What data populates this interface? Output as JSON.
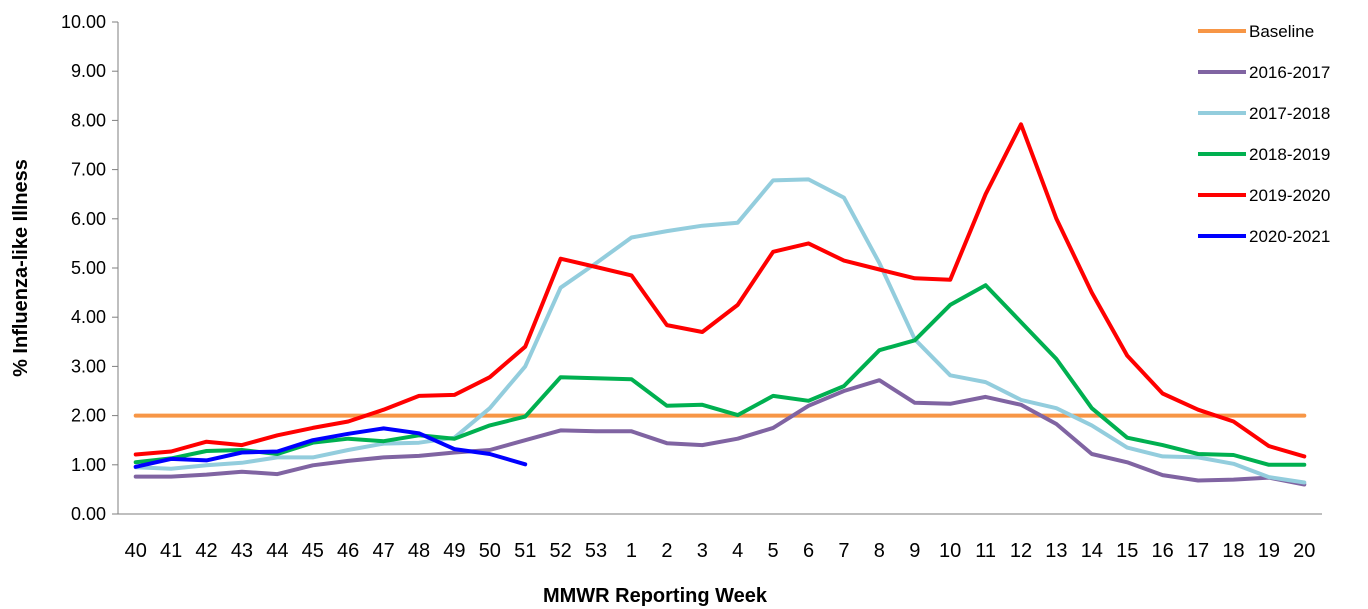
{
  "chart_data": {
    "type": "line",
    "xlabel": "MMWR Reporting Week",
    "ylabel": "% Influenza-like Illness",
    "ylim": [
      0,
      10
    ],
    "yticks": [
      "0.00",
      "1.00",
      "2.00",
      "3.00",
      "4.00",
      "5.00",
      "6.00",
      "7.00",
      "8.00",
      "9.00",
      "10.00"
    ],
    "grid": false,
    "legend_position": "top-right",
    "categories": [
      "40",
      "41",
      "42",
      "43",
      "44",
      "45",
      "46",
      "47",
      "48",
      "49",
      "50",
      "51",
      "52",
      "53",
      "1",
      "2",
      "3",
      "4",
      "5",
      "6",
      "7",
      "8",
      "9",
      "10",
      "11",
      "12",
      "13",
      "14",
      "15",
      "16",
      "17",
      "18",
      "19",
      "20"
    ],
    "series": [
      {
        "name": "Baseline",
        "color": "#F79646",
        "values": [
          2.0,
          2.0,
          2.0,
          2.0,
          2.0,
          2.0,
          2.0,
          2.0,
          2.0,
          2.0,
          2.0,
          2.0,
          2.0,
          2.0,
          2.0,
          2.0,
          2.0,
          2.0,
          2.0,
          2.0,
          2.0,
          2.0,
          2.0,
          2.0,
          2.0,
          2.0,
          2.0,
          2.0,
          2.0,
          2.0,
          2.0,
          2.0,
          2.0,
          2.0
        ]
      },
      {
        "name": "2016-2017",
        "color": "#8064A2",
        "values": [
          0.76,
          0.76,
          0.8,
          0.86,
          0.81,
          0.99,
          1.08,
          1.15,
          1.18,
          1.25,
          1.3,
          1.5,
          1.7,
          1.68,
          1.68,
          1.44,
          1.4,
          1.53,
          1.75,
          2.2,
          2.5,
          2.72,
          2.26,
          2.24,
          2.38,
          2.22,
          1.83,
          1.22,
          1.05,
          0.79,
          0.68,
          0.7,
          0.74,
          0.6
        ]
      },
      {
        "name": "2017-2018",
        "color": "#93CDDD",
        "values": [
          0.95,
          0.92,
          0.99,
          1.04,
          1.15,
          1.15,
          1.3,
          1.43,
          1.45,
          1.55,
          2.15,
          3.0,
          4.6,
          5.1,
          5.62,
          5.75,
          5.86,
          5.92,
          6.78,
          6.8,
          6.43,
          5.1,
          3.55,
          2.82,
          2.68,
          2.32,
          2.15,
          1.8,
          1.35,
          1.17,
          1.15,
          1.02,
          0.75,
          0.64
        ]
      },
      {
        "name": "2018-2019",
        "color": "#00B050",
        "values": [
          1.05,
          1.13,
          1.28,
          1.3,
          1.22,
          1.45,
          1.53,
          1.48,
          1.6,
          1.53,
          1.8,
          1.98,
          2.78,
          2.76,
          2.74,
          2.2,
          2.22,
          2.01,
          2.4,
          2.3,
          2.6,
          3.33,
          3.53,
          4.25,
          4.65,
          3.9,
          3.15,
          2.15,
          1.55,
          1.4,
          1.22,
          1.2,
          1.0,
          1.0
        ]
      },
      {
        "name": "2019-2020",
        "color": "#FF0000",
        "values": [
          1.21,
          1.27,
          1.47,
          1.4,
          1.6,
          1.75,
          1.88,
          2.12,
          2.4,
          2.42,
          2.78,
          3.4,
          5.19,
          5.02,
          4.85,
          3.84,
          3.7,
          4.25,
          5.33,
          5.5,
          5.15,
          4.97,
          4.79,
          4.76,
          6.5,
          7.92,
          6.0,
          4.5,
          3.22,
          2.45,
          2.12,
          1.88,
          1.38,
          1.17
        ]
      },
      {
        "name": "2020-2021",
        "color": "#0000FF",
        "values": [
          0.96,
          1.12,
          1.09,
          1.25,
          1.27,
          1.5,
          1.63,
          1.74,
          1.64,
          1.32,
          1.22,
          1.01,
          null,
          null,
          null,
          null,
          null,
          null,
          null,
          null,
          null,
          null,
          null,
          null,
          null,
          null,
          null,
          null,
          null,
          null,
          null,
          null,
          null,
          null
        ]
      }
    ]
  }
}
